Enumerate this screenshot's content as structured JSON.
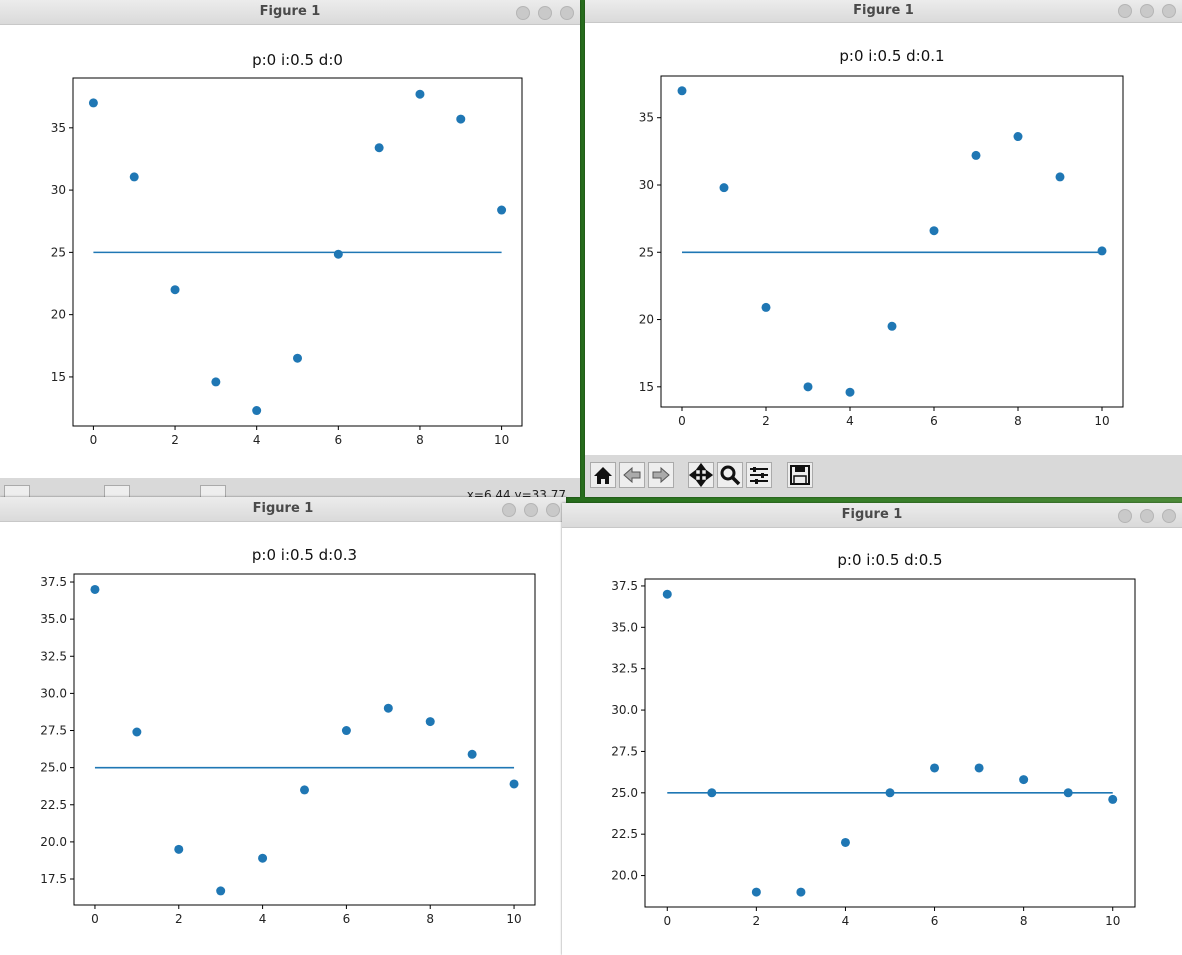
{
  "windows": [
    {
      "title": "Figure 1",
      "status": "x=6.44 y=33.77"
    },
    {
      "title": "Figure 1"
    },
    {
      "title": "Figure 1"
    },
    {
      "title": "Figure 1"
    }
  ],
  "chart_data": [
    {
      "type": "scatter",
      "title": "p:0 i:0.5 d:0",
      "series": [
        {
          "type": "scatter",
          "color": "#1f77b4",
          "x": [
            0,
            1,
            2,
            3,
            4,
            5,
            6,
            7,
            8,
            9,
            10
          ],
          "values": [
            37.0,
            31.06,
            22.0,
            14.6,
            12.3,
            16.5,
            24.85,
            33.4,
            37.7,
            35.7,
            28.4
          ]
        },
        {
          "type": "line",
          "color": "#1f77b4",
          "x": [
            0,
            10
          ],
          "values": [
            25,
            25
          ]
        }
      ],
      "xlim": [
        -0.5,
        10.5
      ],
      "ylim": [
        11.06,
        39.0
      ],
      "xticks": [
        0,
        2,
        4,
        6,
        8,
        10
      ],
      "yticks": [
        15,
        20,
        25,
        30,
        35
      ]
    },
    {
      "type": "scatter",
      "title": "p:0 i:0.5 d:0.1",
      "series": [
        {
          "type": "scatter",
          "color": "#1f77b4",
          "x": [
            0,
            1,
            2,
            3,
            4,
            5,
            6,
            7,
            8,
            9,
            10
          ],
          "values": [
            37.0,
            29.8,
            20.9,
            15.0,
            14.6,
            19.5,
            26.6,
            32.2,
            33.6,
            30.6,
            25.1
          ]
        },
        {
          "type": "line",
          "color": "#1f77b4",
          "x": [
            0,
            10
          ],
          "values": [
            25,
            25
          ]
        }
      ],
      "xlim": [
        -0.5,
        10.5
      ],
      "ylim": [
        13.5,
        38.1
      ],
      "xticks": [
        0,
        2,
        4,
        6,
        8,
        10
      ],
      "yticks": [
        15,
        20,
        25,
        30,
        35
      ]
    },
    {
      "type": "scatter",
      "title": "p:0 i:0.5 d:0.3",
      "series": [
        {
          "type": "scatter",
          "color": "#1f77b4",
          "x": [
            0,
            1,
            2,
            3,
            4,
            5,
            6,
            7,
            8,
            9,
            10
          ],
          "values": [
            37.0,
            27.4,
            19.5,
            16.7,
            18.9,
            23.5,
            27.5,
            29.0,
            28.1,
            25.9,
            23.9
          ]
        },
        {
          "type": "line",
          "color": "#1f77b4",
          "x": [
            0,
            10
          ],
          "values": [
            25,
            25
          ]
        }
      ],
      "xlim": [
        -0.5,
        10.5
      ],
      "ylim": [
        15.75,
        38.04
      ],
      "xticks": [
        0,
        2,
        4,
        6,
        8,
        10
      ],
      "yticks": [
        17.5,
        {
          "value": 20,
          "label": "20.0"
        },
        22.5,
        {
          "value": 25,
          "label": "25.0"
        },
        27.5,
        {
          "value": 30,
          "label": "30.0"
        },
        32.5,
        {
          "value": 35,
          "label": "35.0"
        },
        37.5
      ]
    },
    {
      "type": "scatter",
      "title": "p:0 i:0.5 d:0.5",
      "series": [
        {
          "type": "scatter",
          "color": "#1f77b4",
          "x": [
            0,
            1,
            2,
            3,
            4,
            5,
            6,
            7,
            8,
            9,
            10
          ],
          "values": [
            37.0,
            25.0,
            19.0,
            19.0,
            22.0,
            25.0,
            26.5,
            26.5,
            25.8,
            25.0,
            24.6
          ]
        },
        {
          "type": "line",
          "color": "#1f77b4",
          "x": [
            0,
            10
          ],
          "values": [
            25,
            25
          ]
        }
      ],
      "xlim": [
        -0.5,
        10.5
      ],
      "ylim": [
        18.1,
        37.92
      ],
      "xticks": [
        0,
        2,
        4,
        6,
        8,
        10
      ],
      "yticks": [
        {
          "value": 20,
          "label": "20.0"
        },
        22.5,
        {
          "value": 25,
          "label": "25.0"
        },
        27.5,
        {
          "value": 30,
          "label": "30.0"
        },
        32.5,
        {
          "value": 35,
          "label": "35.0"
        },
        37.5
      ]
    }
  ]
}
